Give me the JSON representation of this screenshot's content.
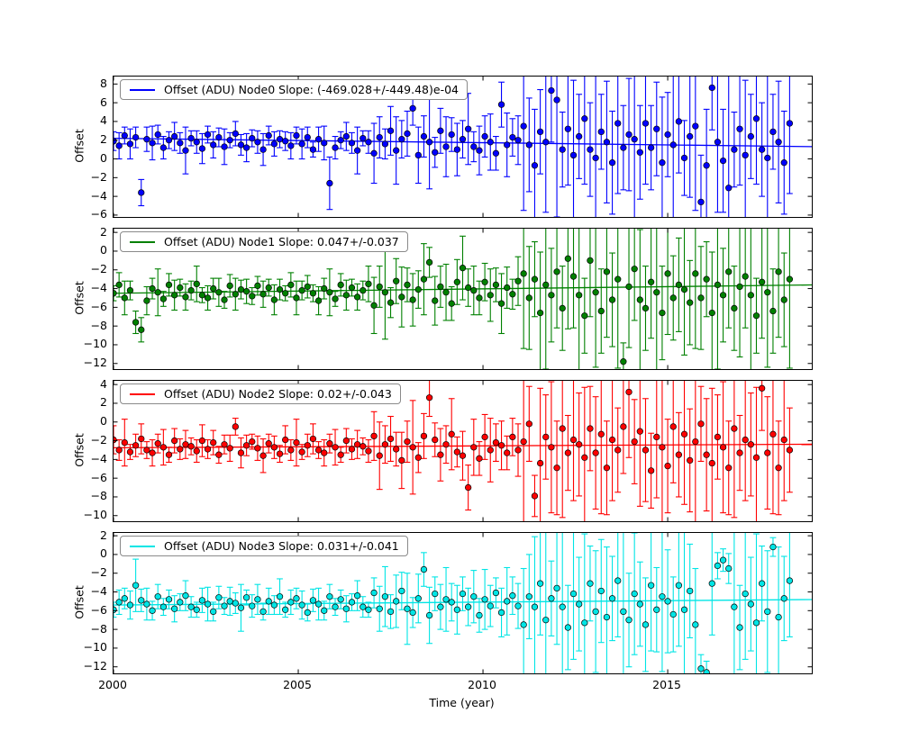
{
  "chart_data": {
    "type": "scatter",
    "title": "",
    "xlabel": "Time (year)",
    "ylabel": "Offset",
    "xlim": [
      2000,
      2018.9
    ],
    "xticks": [
      2000,
      2005,
      2010,
      2015
    ],
    "grid": false,
    "legend_position": "upper left",
    "x": [
      2000,
      2000.15,
      2000.3,
      2000.45,
      2000.6,
      2000.75,
      2000.9,
      2001.05,
      2001.2,
      2001.35,
      2001.5,
      2001.65,
      2001.8,
      2001.95,
      2002.1,
      2002.25,
      2002.4,
      2002.55,
      2002.7,
      2002.85,
      2003,
      2003.15,
      2003.3,
      2003.45,
      2003.6,
      2003.75,
      2003.9,
      2004.05,
      2004.2,
      2004.35,
      2004.5,
      2004.65,
      2004.8,
      2004.95,
      2005.1,
      2005.25,
      2005.4,
      2005.55,
      2005.7,
      2005.85,
      2006,
      2006.15,
      2006.3,
      2006.45,
      2006.6,
      2006.75,
      2006.9,
      2007.05,
      2007.2,
      2007.35,
      2007.5,
      2007.65,
      2007.8,
      2007.95,
      2008.1,
      2008.25,
      2008.4,
      2008.55,
      2008.7,
      2008.85,
      2009,
      2009.15,
      2009.3,
      2009.45,
      2009.6,
      2009.75,
      2009.9,
      2010.05,
      2010.2,
      2010.35,
      2010.5,
      2010.65,
      2010.8,
      2010.95,
      2011.1,
      2011.25,
      2011.4,
      2011.55,
      2011.7,
      2011.85,
      2012,
      2012.15,
      2012.3,
      2012.45,
      2012.6,
      2012.75,
      2012.9,
      2013.05,
      2013.2,
      2013.35,
      2013.5,
      2013.65,
      2013.8,
      2013.95,
      2014.1,
      2014.25,
      2014.4,
      2014.55,
      2014.7,
      2014.85,
      2015,
      2015.15,
      2015.3,
      2015.45,
      2015.6,
      2015.75,
      2015.9,
      2016.05,
      2016.2,
      2016.35,
      2016.5,
      2016.65,
      2016.8,
      2016.95,
      2017.1,
      2017.25,
      2017.4,
      2017.55,
      2017.7,
      2017.85,
      2018,
      2018.15,
      2018.3
    ],
    "panels": [
      {
        "name": "Node0",
        "legend_label": "Offset (ADU) Node0 Slope: (-469.028+/-449.48)e-04",
        "color": "#0000ff",
        "marker_edge": "#000000",
        "ylim": [
          -6.2,
          8.8
        ],
        "yticks": [
          8,
          6,
          4,
          2,
          0,
          -2,
          -4,
          -6
        ],
        "fit": {
          "y_2000": 2.2,
          "slope_per_year": -0.0469
        },
        "y": [
          1.9,
          1.4,
          2.5,
          1.6,
          2.3,
          -3.6,
          2.1,
          1.7,
          2.6,
          1.2,
          2.0,
          2.4,
          1.7,
          0.9,
          2.2,
          1.8,
          1.1,
          2.6,
          1.5,
          2.3,
          1.3,
          2.0,
          2.7,
          1.5,
          1.2,
          2.2,
          1.8,
          1.0,
          2.5,
          1.6,
          2.1,
          1.9,
          1.4,
          2.5,
          1.6,
          2.3,
          1.0,
          2.1,
          1.7,
          -2.6,
          1.2,
          2.0,
          2.4,
          1.7,
          0.9,
          2.2,
          1.8,
          0.6,
          2.3,
          1.6,
          3.0,
          0.9,
          2.1,
          2.7,
          5.4,
          0.4,
          2.4,
          1.8,
          0.7,
          3.0,
          1.3,
          2.6,
          1.0,
          2.1,
          3.2,
          1.3,
          0.9,
          2.4,
          1.8,
          0.6,
          5.8,
          1.5,
          2.3,
          2.0,
          3.5,
          1.5,
          -0.7,
          2.9,
          1.8,
          7.3,
          6.3,
          1.0,
          3.2,
          0.4,
          2.4,
          4.3,
          1.0,
          0.1,
          2.9,
          1.8,
          -0.4,
          3.8,
          1.2,
          2.6,
          2.1,
          0.7,
          3.8,
          1.2,
          3.2,
          -0.4,
          2.6,
          1.5,
          4.0,
          0.1,
          2.4,
          3.5,
          -4.6,
          -0.7,
          7.6,
          1.8,
          -0.2,
          -3.1,
          1.0,
          3.2,
          0.4,
          2.4,
          4.3,
          1.0,
          0.1,
          2.9,
          1.8,
          -0.4,
          3.8
        ],
        "err": [
          1.0,
          1.4,
          0.9,
          1.6,
          1.1,
          1.4,
          1.3,
          1.8,
          1.0,
          1.2,
          0.9,
          1.5,
          1.1,
          2.5,
          0.8,
          1.2,
          1.6,
          0.9,
          1.4,
          1.0,
          1.9,
          0.8,
          1.3,
          1.1,
          1.5,
          0.9,
          1.2,
          1.7,
          1.0,
          1.3,
          0.9,
          1.0,
          1.4,
          0.9,
          1.6,
          1.1,
          0.8,
          1.3,
          1.8,
          2.8,
          1.2,
          0.9,
          1.5,
          1.1,
          2.5,
          0.8,
          1.2,
          3.2,
          2.2,
          1.6,
          2.6,
          3.6,
          2.0,
          2.4,
          1.8,
          3.0,
          2.2,
          5.0,
          1.6,
          2.4,
          3.2,
          1.8,
          2.8,
          2.0,
          3.8,
          1.6,
          2.6,
          2.2,
          3.0,
          1.8,
          2.4,
          3.4,
          2.0,
          2.6,
          9.0,
          5.0,
          6.0,
          4.5,
          7.5,
          5.5,
          12.5,
          4.0,
          6.0,
          8.0,
          4.5,
          7.0,
          5.0,
          9.5,
          4.0,
          6.5,
          5.5,
          7.5,
          4.5,
          6.0,
          8.5,
          5.0,
          6.5,
          4.5,
          5.0,
          7.0,
          4.5,
          8.0,
          5.5,
          4.0,
          6.5,
          9.0,
          5.0,
          6.0,
          4.5,
          7.5,
          5.5,
          12.5,
          4.0,
          6.0,
          8.0,
          4.5,
          7.0,
          5.0,
          9.5,
          4.0,
          6.5,
          5.5,
          7.5
        ]
      },
      {
        "name": "Node1",
        "legend_label": "Offset (ADU) Node1 Slope: 0.047+/-0.037",
        "color": "#008000",
        "marker_edge": "#000000",
        "ylim": [
          -12.6,
          2.4
        ],
        "yticks": [
          2,
          0,
          -2,
          -4,
          -6,
          -8,
          -10,
          -12
        ],
        "fit": {
          "y_2000": -4.5,
          "slope_per_year": 0.047
        },
        "y": [
          -4.5,
          -3.6,
          -5.0,
          -4.2,
          -7.6,
          -8.4,
          -5.3,
          -4.0,
          -4.4,
          -5.1,
          -3.6,
          -4.7,
          -3.9,
          -4.9,
          -4.2,
          -3.5,
          -4.7,
          -5.0,
          -4.0,
          -4.4,
          -5.2,
          -3.7,
          -4.6,
          -4.1,
          -4.3,
          -4.8,
          -3.7,
          -4.6,
          -3.9,
          -5.2,
          -4.1,
          -4.5,
          -3.6,
          -5.0,
          -4.2,
          -3.8,
          -4.5,
          -5.3,
          -4.0,
          -4.4,
          -5.1,
          -3.6,
          -4.7,
          -3.9,
          -4.9,
          -4.2,
          -3.5,
          -5.8,
          -3.8,
          -4.4,
          -5.5,
          -3.2,
          -4.9,
          -3.6,
          -5.2,
          -4.1,
          -3.0,
          -1.2,
          -5.3,
          -3.8,
          -4.4,
          -5.6,
          -3.3,
          -1.8,
          -3.9,
          -4.2,
          -5.0,
          -3.3,
          -4.7,
          -3.6,
          -5.6,
          -3.9,
          -4.6,
          -3.2,
          -2.4,
          -5.0,
          -3.0,
          -6.6,
          -3.6,
          -4.7,
          -2.2,
          -6.1,
          -0.8,
          -2.7,
          -4.7,
          -6.9,
          -1.0,
          -4.4,
          -6.4,
          -2.2,
          -5.2,
          -3.0,
          -11.8,
          -3.8,
          -1.9,
          -5.2,
          -6.1,
          -3.3,
          -4.4,
          -6.6,
          -2.4,
          -5.0,
          -3.6,
          -4.1,
          -5.5,
          -2.4,
          -5.0,
          -3.0,
          -6.6,
          -3.6,
          -4.7,
          -2.2,
          -6.1,
          -3.8,
          -2.7,
          -4.7,
          -6.9,
          -3.3,
          -4.4,
          -6.4,
          -2.2,
          -5.2,
          -3.0
        ],
        "err": [
          0.8,
          1.3,
          1.8,
          1.0,
          1.2,
          1.3,
          1.5,
          1.1,
          2.5,
          0.8,
          1.2,
          1.6,
          0.9,
          1.4,
          1.0,
          1.9,
          0.8,
          1.3,
          1.1,
          1.5,
          0.9,
          1.2,
          1.7,
          1.0,
          1.3,
          0.9,
          1.0,
          1.4,
          0.9,
          1.6,
          1.1,
          0.8,
          1.3,
          1.8,
          1.0,
          1.2,
          0.9,
          1.5,
          1.1,
          2.5,
          0.8,
          1.2,
          1.6,
          0.9,
          1.4,
          1.0,
          1.9,
          3.0,
          2.2,
          5.0,
          1.6,
          2.4,
          3.2,
          1.8,
          2.8,
          2.0,
          3.8,
          1.6,
          2.6,
          2.2,
          3.0,
          1.8,
          2.4,
          3.4,
          2.0,
          2.6,
          1.8,
          2.0,
          2.8,
          1.8,
          3.2,
          2.2,
          1.6,
          2.6,
          8.0,
          5.5,
          4.0,
          6.5,
          9.0,
          5.0,
          6.0,
          4.5,
          7.5,
          5.5,
          12.5,
          4.0,
          6.0,
          8.0,
          4.5,
          7.0,
          5.0,
          9.5,
          2.0,
          6.5,
          5.5,
          7.5,
          4.5,
          6.0,
          8.5,
          5.0,
          6.5,
          4.5,
          5.0,
          7.0,
          4.5,
          8.0,
          5.5,
          4.0,
          6.5,
          9.0,
          5.0,
          6.0,
          4.5,
          7.5,
          5.5,
          12.5,
          4.0,
          6.0,
          8.0,
          4.5,
          7.0,
          5.0,
          9.5
        ]
      },
      {
        "name": "Node2",
        "legend_label": "Offset (ADU) Node2 Slope: 0.02+/-0.043",
        "color": "#ff0000",
        "marker_edge": "#000000",
        "ylim": [
          -10.6,
          4.4
        ],
        "yticks": [
          4,
          2,
          0,
          -2,
          -4,
          -6,
          -8,
          -10
        ],
        "fit": {
          "y_2000": -2.75,
          "slope_per_year": 0.02
        },
        "y": [
          -1.9,
          -3.0,
          -2.2,
          -3.2,
          -2.5,
          -1.8,
          -3.0,
          -3.3,
          -2.3,
          -2.7,
          -3.5,
          -2.0,
          -2.9,
          -2.4,
          -2.6,
          -3.1,
          -2.0,
          -2.9,
          -2.2,
          -3.5,
          -2.4,
          -2.8,
          -0.5,
          -3.3,
          -2.5,
          -2.1,
          -2.8,
          -3.6,
          -2.3,
          -2.7,
          -3.4,
          -1.9,
          -3.0,
          -2.2,
          -3.2,
          -2.5,
          -1.8,
          -3.0,
          -3.3,
          -2.3,
          -2.7,
          -3.5,
          -2.0,
          -2.9,
          -2.4,
          -2.6,
          -3.1,
          -1.5,
          -3.6,
          -2.4,
          -1.8,
          -2.9,
          -4.1,
          -2.1,
          -2.7,
          -3.8,
          -1.5,
          2.6,
          -1.9,
          -3.5,
          -2.4,
          -1.3,
          -3.2,
          -3.6,
          -7.0,
          -2.7,
          -3.9,
          -1.6,
          -3.0,
          -2.2,
          -2.5,
          -3.3,
          -1.6,
          -3.0,
          -2.1,
          -0.2,
          -7.9,
          -4.4,
          -1.6,
          -2.7,
          -4.9,
          -0.7,
          -3.3,
          -1.9,
          -2.4,
          -3.8,
          -0.7,
          -3.3,
          -1.3,
          -4.9,
          -1.9,
          -3.0,
          -0.5,
          3.2,
          -2.1,
          -1.0,
          -3.0,
          -5.2,
          -1.6,
          -2.7,
          -4.7,
          -0.5,
          -3.5,
          -1.3,
          -4.1,
          -2.1,
          -0.2,
          -3.5,
          -4.4,
          -1.6,
          -2.7,
          -4.9,
          -0.7,
          -3.3,
          -1.9,
          -2.4,
          -3.8,
          3.6,
          -3.3,
          -1.3,
          -4.9,
          -1.9,
          -3.0
        ],
        "err": [
          1.5,
          1.1,
          2.5,
          0.8,
          1.2,
          1.6,
          0.9,
          1.4,
          1.0,
          1.9,
          0.8,
          1.3,
          1.1,
          1.5,
          0.9,
          1.2,
          1.7,
          1.0,
          1.3,
          0.9,
          1.0,
          1.4,
          0.9,
          1.6,
          1.1,
          0.8,
          1.3,
          1.8,
          1.0,
          1.2,
          0.9,
          1.5,
          1.1,
          2.5,
          0.8,
          1.2,
          1.6,
          0.9,
          1.4,
          1.0,
          1.9,
          0.8,
          1.3,
          1.1,
          1.5,
          0.9,
          1.2,
          2.6,
          3.6,
          2.0,
          2.4,
          1.8,
          3.0,
          2.2,
          5.0,
          1.6,
          2.4,
          2.0,
          1.8,
          2.8,
          2.0,
          3.8,
          1.6,
          2.6,
          2.4,
          3.0,
          1.8,
          2.4,
          3.4,
          2.0,
          2.6,
          1.8,
          2.0,
          2.8,
          12.5,
          4.0,
          2.2,
          8.0,
          4.5,
          7.0,
          5.0,
          9.5,
          4.0,
          6.5,
          5.5,
          7.5,
          4.5,
          6.0,
          8.5,
          5.0,
          6.5,
          4.5,
          5.0,
          7.0,
          4.5,
          8.0,
          5.5,
          4.0,
          6.5,
          9.0,
          5.0,
          6.0,
          4.5,
          7.5,
          5.5,
          12.5,
          4.0,
          6.0,
          8.0,
          4.5,
          7.0,
          5.0,
          9.5,
          4.0,
          6.5,
          5.5,
          7.5,
          4.5,
          6.0,
          8.5,
          5.0,
          6.5,
          4.5
        ]
      },
      {
        "name": "Node3",
        "legend_label": "Offset (ADU) Node3 Slope: 0.031+/-0.041",
        "color": "#00e5e5",
        "marker_edge": "#000000",
        "ylim": [
          -12.7,
          2.3
        ],
        "yticks": [
          2,
          0,
          -2,
          -4,
          -6,
          -8,
          -10,
          -12
        ],
        "fit": {
          "y_2000": -5.4,
          "slope_per_year": 0.031
        },
        "y": [
          -5.9,
          -5.1,
          -4.7,
          -5.4,
          -3.3,
          -4.9,
          -5.3,
          -6.0,
          -4.5,
          -5.6,
          -4.8,
          -5.8,
          -5.1,
          -4.4,
          -5.6,
          -5.9,
          -4.9,
          -5.3,
          -6.1,
          -4.6,
          -5.5,
          -5.0,
          -5.2,
          -5.7,
          -4.6,
          -5.5,
          -4.8,
          -6.1,
          -5.0,
          -5.4,
          -4.5,
          -5.9,
          -5.1,
          -4.7,
          -5.4,
          -6.2,
          -4.9,
          -5.3,
          -6.0,
          -4.5,
          -5.6,
          -4.8,
          -5.8,
          -5.1,
          -4.4,
          -5.6,
          -5.9,
          -4.1,
          -5.8,
          -4.5,
          -6.1,
          -5.0,
          -3.9,
          -5.8,
          -6.2,
          -4.7,
          -1.6,
          -6.5,
          -4.2,
          -5.6,
          -4.8,
          -5.1,
          -5.9,
          -4.2,
          -5.6,
          -4.5,
          -6.5,
          -4.8,
          -5.5,
          -4.1,
          -6.2,
          -5.0,
          -4.4,
          -5.5,
          -7.5,
          -4.5,
          -5.6,
          -3.1,
          -7.0,
          -4.7,
          -3.6,
          -5.6,
          -7.8,
          -4.2,
          -5.3,
          -7.3,
          -3.1,
          -6.1,
          -3.9,
          -6.7,
          -4.7,
          -2.8,
          -6.1,
          -7.0,
          -4.2,
          -5.3,
          -7.5,
          -3.3,
          -5.9,
          -4.5,
          -5.0,
          -6.4,
          -3.3,
          -5.9,
          -3.9,
          -7.5,
          -12.2,
          -12.6,
          -3.1,
          -1.2,
          -0.6,
          -1.5,
          -5.6,
          -7.8,
          -4.2,
          -5.3,
          -7.3,
          -3.1,
          -6.1,
          0.8,
          -6.7,
          -4.7,
          -2.8
        ],
        "err": [
          0.8,
          1.3,
          1.1,
          1.5,
          2.8,
          1.2,
          1.7,
          1.0,
          1.3,
          0.9,
          1.0,
          1.4,
          0.9,
          1.6,
          1.1,
          0.8,
          1.3,
          1.8,
          1.0,
          1.2,
          0.9,
          1.5,
          1.1,
          2.5,
          0.8,
          1.2,
          1.6,
          0.9,
          1.4,
          1.0,
          1.9,
          0.8,
          1.3,
          1.1,
          1.5,
          0.9,
          1.2,
          1.7,
          1.0,
          1.3,
          0.9,
          1.0,
          1.4,
          0.9,
          1.6,
          1.1,
          0.8,
          1.6,
          2.4,
          3.2,
          1.8,
          2.8,
          2.0,
          3.8,
          1.6,
          2.6,
          1.8,
          3.0,
          1.8,
          2.4,
          3.4,
          2.0,
          2.6,
          1.8,
          2.0,
          2.8,
          1.8,
          3.2,
          2.2,
          1.6,
          2.6,
          3.6,
          2.0,
          2.4,
          6.0,
          4.5,
          7.5,
          5.5,
          12.5,
          4.0,
          6.0,
          8.0,
          4.5,
          7.0,
          5.0,
          9.5,
          4.0,
          6.5,
          5.5,
          7.5,
          4.5,
          6.0,
          8.5,
          5.0,
          6.5,
          4.5,
          5.0,
          7.0,
          4.5,
          8.0,
          5.5,
          4.0,
          6.5,
          9.0,
          5.0,
          6.0,
          1.5,
          1.2,
          5.5,
          1.4,
          1.2,
          1.6,
          8.0,
          4.5,
          7.0,
          5.0,
          9.5,
          4.0,
          6.5,
          1.0,
          7.5,
          4.5,
          6.0
        ]
      }
    ]
  }
}
